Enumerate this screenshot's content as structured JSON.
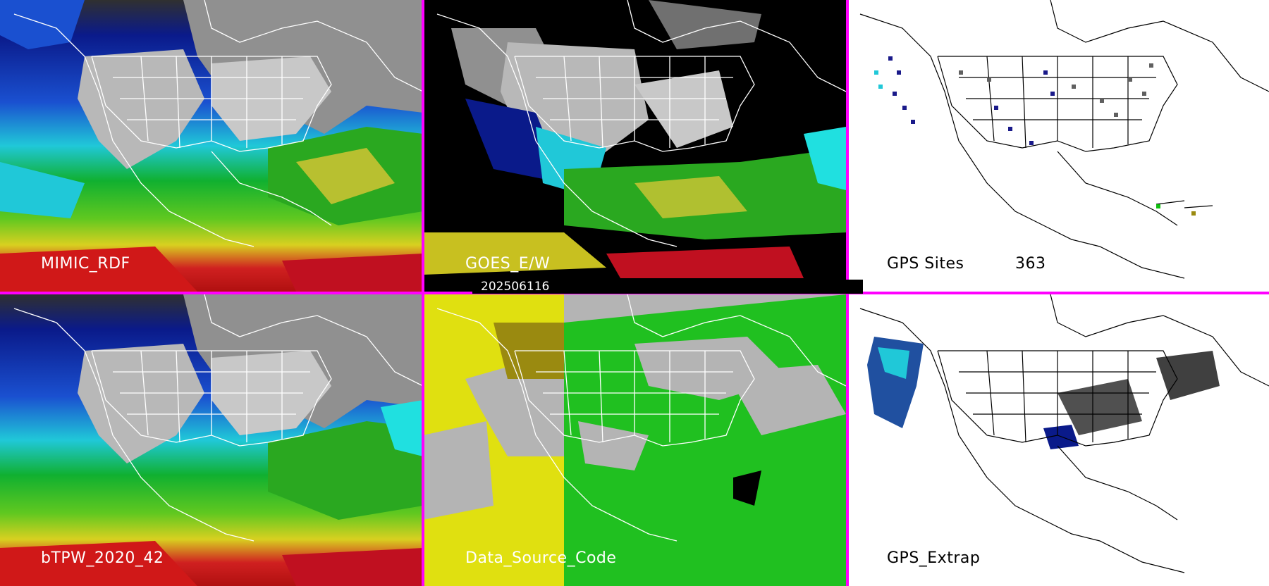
{
  "panels": {
    "p1": {
      "label": "MIMIC_RDF"
    },
    "p2": {
      "label": "GOES_E/W"
    },
    "p3": {
      "label": "GPS Sites",
      "count": "363"
    },
    "p4": {
      "label": "bTPW_2020_42"
    },
    "p5": {
      "label": "Data_Source_Code"
    },
    "p6": {
      "label": "GPS_Extrap"
    }
  },
  "timestamp": "202506116",
  "colors": {
    "separator": "#ff00ff",
    "tpw_scale": [
      "#a0a0a0",
      "#d8d8d8",
      "#0a1a8a",
      "#1050d0",
      "#20e0e0",
      "#10c010",
      "#60d020",
      "#d8d820",
      "#d02020",
      "#c01010"
    ],
    "source_code": [
      "#b4b4b4",
      "#e0e010",
      "#20c020",
      "#9a8a10"
    ]
  },
  "icons": [
    "map-outline-north-america",
    "state-boundaries",
    "gps-site-markers"
  ]
}
